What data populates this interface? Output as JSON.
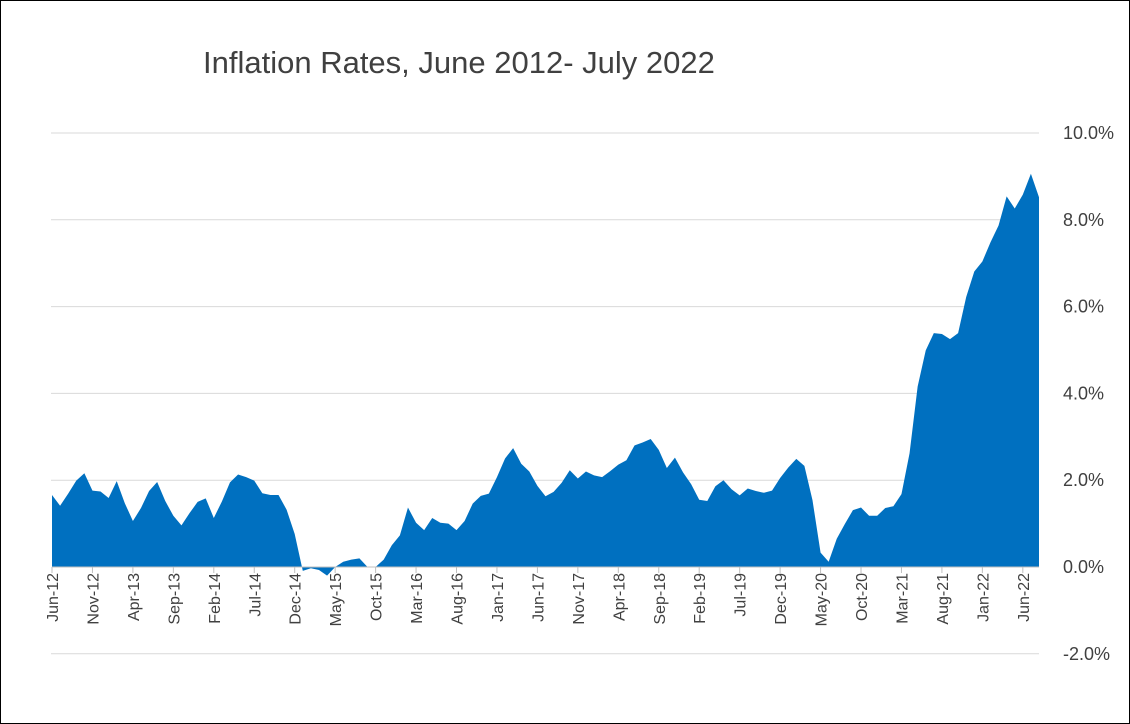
{
  "chart_data": {
    "type": "area",
    "title": "Inflation Rates, June 2012- July 2022",
    "xlabel": "",
    "ylabel": "",
    "ylim": [
      -2.0,
      10.0
    ],
    "y_ticks": [
      "10.0%",
      "8.0%",
      "6.0%",
      "4.0%",
      "2.0%",
      "0.0%",
      "-2.0%"
    ],
    "y_tick_values": [
      10,
      8,
      6,
      4,
      2,
      0,
      -2
    ],
    "grid": true,
    "legend": "none",
    "color": "#0070c0",
    "x_tick_labels": [
      "Jun-12",
      "Nov-12",
      "Apr-13",
      "Sep-13",
      "Feb-14",
      "Jul-14",
      "Dec-14",
      "May-15",
      "Oct-15",
      "Mar-16",
      "Aug-16",
      "Jan-17",
      "Jun-17",
      "Nov-17",
      "Apr-18",
      "Sep-18",
      "Feb-19",
      "Jul-19",
      "Dec-19",
      "May-20",
      "Oct-20",
      "Mar-21",
      "Aug-21",
      "Jan-22",
      "Jun-22"
    ],
    "x_start": "Jun-12",
    "x_end": "Jul-22",
    "values": [
      1.66,
      1.41,
      1.69,
      1.99,
      2.16,
      1.76,
      1.74,
      1.59,
      1.98,
      1.47,
      1.06,
      1.36,
      1.75,
      1.96,
      1.52,
      1.18,
      0.96,
      1.24,
      1.5,
      1.58,
      1.13,
      1.51,
      1.95,
      2.13,
      2.07,
      1.99,
      1.7,
      1.66,
      1.66,
      1.32,
      0.76,
      -0.09,
      -0.03,
      -0.07,
      -0.2,
      0.0,
      0.12,
      0.17,
      0.2,
      0.0,
      0.0,
      0.17,
      0.5,
      0.73,
      1.37,
      1.02,
      0.85,
      1.13,
      1.02,
      1.0,
      0.85,
      1.06,
      1.46,
      1.64,
      1.69,
      2.07,
      2.5,
      2.74,
      2.38,
      2.2,
      1.87,
      1.63,
      1.73,
      1.94,
      2.23,
      2.04,
      2.2,
      2.11,
      2.07,
      2.21,
      2.36,
      2.46,
      2.8,
      2.87,
      2.95,
      2.7,
      2.28,
      2.52,
      2.18,
      1.91,
      1.55,
      1.52,
      1.86,
      2.0,
      1.79,
      1.65,
      1.81,
      1.75,
      1.71,
      1.76,
      2.05,
      2.29,
      2.49,
      2.33,
      1.54,
      0.33,
      0.12,
      0.65,
      0.99,
      1.31,
      1.37,
      1.18,
      1.18,
      1.36,
      1.4,
      1.68,
      2.62,
      4.16,
      4.99,
      5.39,
      5.37,
      5.25,
      5.39,
      6.22,
      6.81,
      7.04,
      7.48,
      7.87,
      8.54,
      8.26,
      8.58,
      9.06,
      8.52
    ]
  }
}
